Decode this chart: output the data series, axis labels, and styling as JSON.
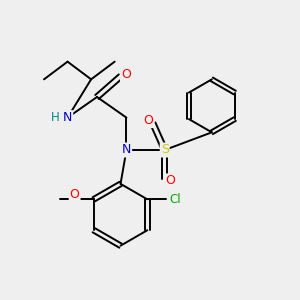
{
  "bg_color": "#efefef",
  "bond_color": "#000000",
  "atom_colors": {
    "N": "#0000cc",
    "O": "#ff0000",
    "S": "#cccc00",
    "Cl": "#00aa00",
    "H": "#008888",
    "C": "#000000"
  },
  "figsize": [
    3.0,
    3.0
  ],
  "dpi": 100,
  "xlim": [
    0,
    10
  ],
  "ylim": [
    0,
    10
  ]
}
